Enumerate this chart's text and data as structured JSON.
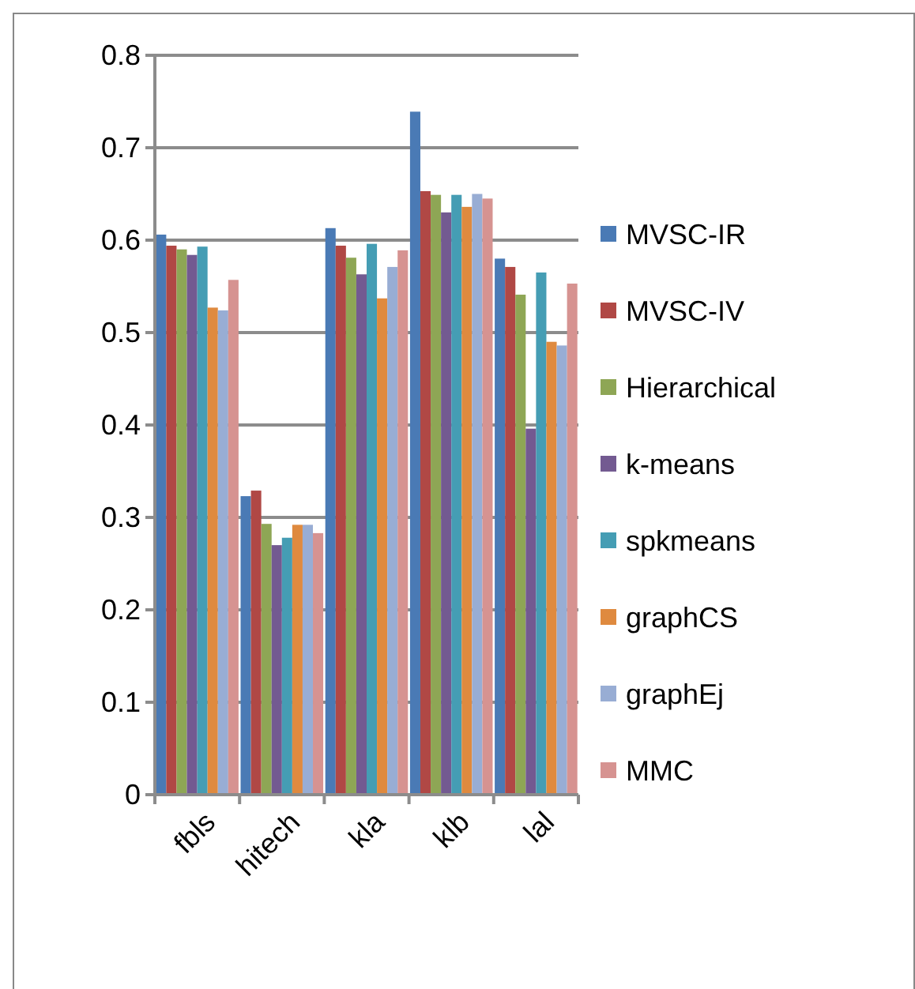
{
  "chart_data": {
    "type": "bar",
    "categories": [
      "fbls",
      "hitech",
      "kla",
      "klb",
      "lal"
    ],
    "series": [
      {
        "name": "MVSC-IR",
        "color": "#4a7ab5",
        "values": [
          0.606,
          0.323,
          0.613,
          0.739,
          0.58
        ]
      },
      {
        "name": "MVSC-IV",
        "color": "#b04845",
        "values": [
          0.594,
          0.329,
          0.594,
          0.653,
          0.571
        ]
      },
      {
        "name": "Hierarchical",
        "color": "#8ea655",
        "values": [
          0.59,
          0.293,
          0.581,
          0.649,
          0.541
        ]
      },
      {
        "name": "k-means",
        "color": "#735a91",
        "values": [
          0.584,
          0.27,
          0.563,
          0.63,
          0.396
        ]
      },
      {
        "name": "spkmeans",
        "color": "#459db4",
        "values": [
          0.593,
          0.278,
          0.596,
          0.649,
          0.565
        ]
      },
      {
        "name": "graphCS",
        "color": "#df8a3f",
        "values": [
          0.527,
          0.292,
          0.537,
          0.636,
          0.49
        ]
      },
      {
        "name": "graphEj",
        "color": "#98add4",
        "values": [
          0.524,
          0.292,
          0.571,
          0.65,
          0.486
        ]
      },
      {
        "name": "MMC",
        "color": "#d69391",
        "values": [
          0.557,
          0.283,
          0.589,
          0.645,
          0.553
        ]
      }
    ],
    "ylim": [
      0,
      0.8
    ],
    "yticks": [
      0,
      0.1,
      0.2,
      0.3,
      0.4,
      0.5,
      0.6,
      0.7,
      0.8
    ],
    "grid": "y",
    "legend": "right"
  }
}
